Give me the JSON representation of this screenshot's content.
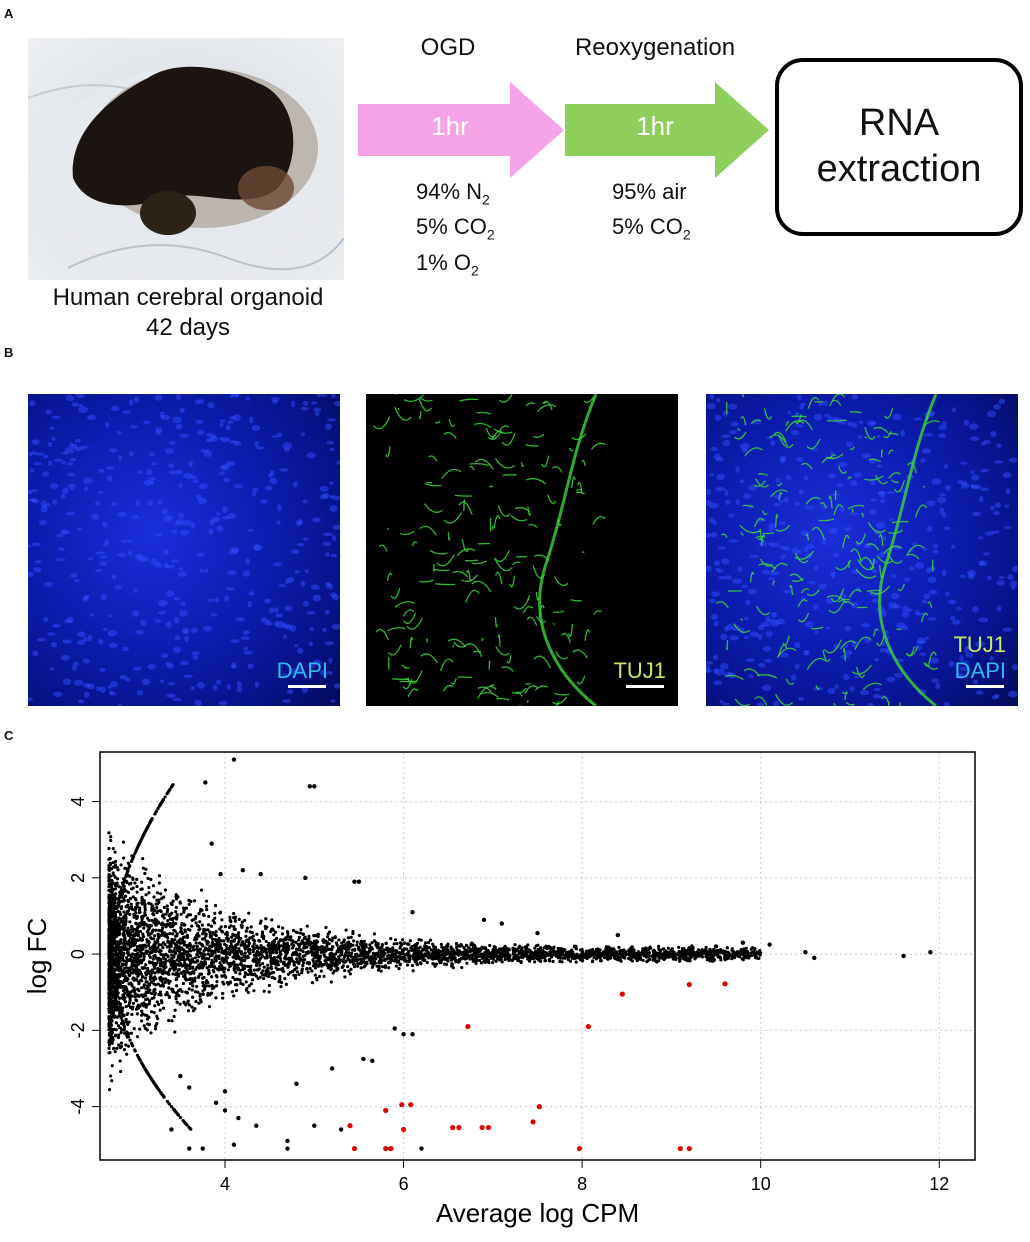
{
  "panels": {
    "a": "A",
    "b": "B",
    "c": "C"
  },
  "panel_a": {
    "organoid_caption_line1": "Human cerebral organoid",
    "organoid_caption_line2": "42 days",
    "step1_title": "OGD",
    "step1_duration": "1hr",
    "step1_conditions": [
      {
        "text": "94% N",
        "sub": "2"
      },
      {
        "text": "5% CO",
        "sub": "2"
      },
      {
        "text": "1% O",
        "sub": "2"
      }
    ],
    "step2_title": "Reoxygenation",
    "step2_duration": "1hr",
    "step2_conditions": [
      {
        "text": "95% air",
        "sub": ""
      },
      {
        "text": "5% CO",
        "sub": "2"
      }
    ],
    "final_box_line1": "RNA",
    "final_box_line2": "extraction",
    "colors": {
      "arrow1": "#f5a3e6",
      "arrow2": "#8dcf5a"
    }
  },
  "panel_b": {
    "images": [
      {
        "labels": [
          "DAPI"
        ],
        "label_colors": [
          "#33b8f0"
        ]
      },
      {
        "labels": [
          "TUJ1"
        ],
        "label_colors": [
          "#c6e86a"
        ]
      },
      {
        "labels": [
          "TUJ1",
          "DAPI"
        ],
        "label_colors": [
          "#c6e86a",
          "#33b8f0"
        ]
      }
    ]
  },
  "chart_data": {
    "type": "scatter",
    "title": "",
    "xlabel": "Average log CPM",
    "ylabel": "log FC",
    "xlim": [
      2.6,
      12.4
    ],
    "ylim": [
      -5.4,
      5.3
    ],
    "xticks": [
      4,
      6,
      8,
      10,
      12
    ],
    "yticks": [
      -4,
      -2,
      0,
      2,
      4
    ],
    "grid": true,
    "series": [
      {
        "color": "#000000",
        "points": [
          [
            3.78,
            4.5
          ],
          [
            4.1,
            5.1
          ],
          [
            4.95,
            4.4
          ],
          [
            5.0,
            4.4
          ],
          [
            3.85,
            2.9
          ],
          [
            3.95,
            2.1
          ],
          [
            4.2,
            2.2
          ],
          [
            4.4,
            2.1
          ],
          [
            4.9,
            2.0
          ],
          [
            5.45,
            1.9
          ],
          [
            5.5,
            1.9
          ],
          [
            6.1,
            1.1
          ],
          [
            6.9,
            0.9
          ],
          [
            7.1,
            0.8
          ],
          [
            7.5,
            0.55
          ],
          [
            8.4,
            0.5
          ],
          [
            9.2,
            0.15
          ],
          [
            9.5,
            0.2
          ],
          [
            9.8,
            0.3
          ],
          [
            10.1,
            0.25
          ],
          [
            10.5,
            0.05
          ],
          [
            10.6,
            -0.1
          ],
          [
            11.6,
            -0.05
          ],
          [
            11.9,
            0.05
          ],
          [
            3.5,
            -3.2
          ],
          [
            3.6,
            -3.5
          ],
          [
            3.9,
            -3.9
          ],
          [
            4.0,
            -4.1
          ],
          [
            4.15,
            -4.3
          ],
          [
            4.35,
            -4.5
          ],
          [
            4.7,
            -4.9
          ],
          [
            5.0,
            -4.5
          ],
          [
            5.3,
            -4.6
          ],
          [
            5.55,
            -2.75
          ],
          [
            5.65,
            -2.8
          ],
          [
            5.9,
            -1.95
          ],
          [
            6.0,
            -2.1
          ],
          [
            6.1,
            -2.1
          ],
          [
            5.2,
            -3.0
          ],
          [
            4.8,
            -3.4
          ],
          [
            3.6,
            -5.1
          ],
          [
            3.75,
            -5.1
          ],
          [
            4.1,
            -5.0
          ],
          [
            4.7,
            -5.1
          ],
          [
            5.85,
            -5.1
          ],
          [
            6.2,
            -5.1
          ],
          [
            3.4,
            -4.6
          ],
          [
            4.0,
            -3.6
          ]
        ]
      },
      {
        "color": "#e00000",
        "points": [
          [
            8.45,
            -1.05
          ],
          [
            9.2,
            -0.8
          ],
          [
            9.6,
            -0.78
          ],
          [
            6.72,
            -1.9
          ],
          [
            8.07,
            -1.9
          ],
          [
            5.98,
            -3.95
          ],
          [
            6.08,
            -3.95
          ],
          [
            7.52,
            -4.0
          ],
          [
            5.8,
            -4.1
          ],
          [
            7.45,
            -4.4
          ],
          [
            5.4,
            -4.5
          ],
          [
            6.55,
            -4.55
          ],
          [
            6.62,
            -4.55
          ],
          [
            6.88,
            -4.55
          ],
          [
            6.95,
            -4.55
          ],
          [
            6.0,
            -4.6
          ],
          [
            5.45,
            -5.1
          ],
          [
            5.8,
            -5.1
          ],
          [
            5.86,
            -5.1
          ],
          [
            7.97,
            -5.1
          ],
          [
            9.1,
            -5.1
          ],
          [
            9.2,
            -5.1
          ]
        ]
      }
    ]
  }
}
